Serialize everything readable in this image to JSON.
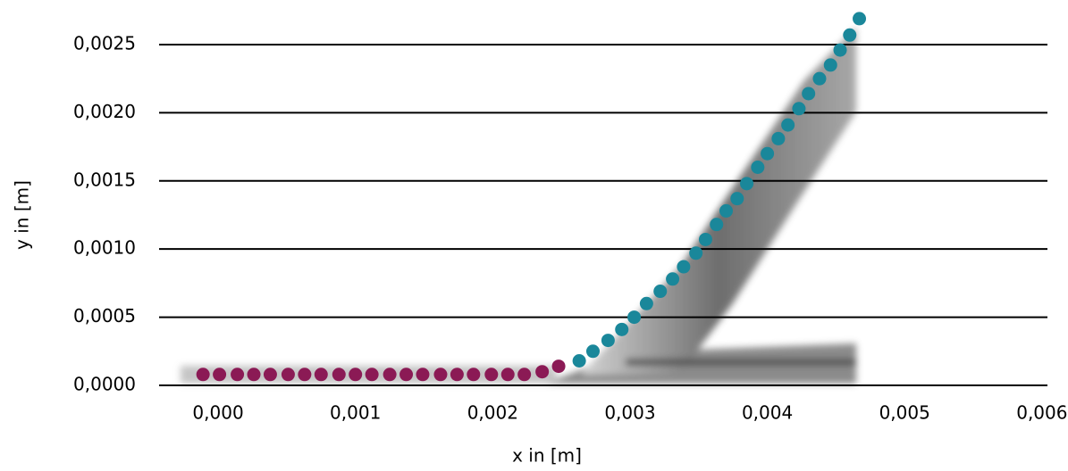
{
  "chart_data": {
    "type": "scatter",
    "x_label": "x in [m]",
    "y_label": "y in [m]",
    "xlim": [
      -0.00043,
      0.00604
    ],
    "ylim": [
      0,
      0.0027
    ],
    "xticks": [
      {
        "value": 0,
        "label": "0,000"
      },
      {
        "value": 0.001,
        "label": "0,001"
      },
      {
        "value": 0.002,
        "label": "0,002"
      },
      {
        "value": 0.003,
        "label": "0,003"
      },
      {
        "value": 0.004,
        "label": "0,004"
      },
      {
        "value": 0.005,
        "label": "0,005"
      },
      {
        "value": 0.006,
        "label": "0,006"
      }
    ],
    "yticks": [
      {
        "value": 0,
        "label": "0,0000"
      },
      {
        "value": 0.0005,
        "label": "0,0005"
      },
      {
        "value": 0.001,
        "label": "0,0010"
      },
      {
        "value": 0.0015,
        "label": "0,0015"
      },
      {
        "value": 0.002,
        "label": "0,0020"
      },
      {
        "value": 0.0025,
        "label": "0,0025"
      }
    ],
    "grid": true,
    "series": [
      {
        "color": "#8b1a55",
        "x": [
          -0.00011,
          1e-05,
          0.00014,
          0.00026,
          0.00038,
          0.00051,
          0.00063,
          0.00075,
          0.00088,
          0.001,
          0.00112,
          0.00125,
          0.00137,
          0.00149,
          0.00162,
          0.00174,
          0.00186,
          0.00199,
          0.00211,
          0.00223,
          0.00236,
          0.00248
        ],
        "values": [
          8e-05,
          8e-05,
          8e-05,
          8e-05,
          8e-05,
          8e-05,
          8e-05,
          8e-05,
          8e-05,
          8e-05,
          8e-05,
          8e-05,
          8e-05,
          8e-05,
          8e-05,
          8e-05,
          8e-05,
          8e-05,
          8e-05,
          8e-05,
          0.0001,
          0.00014
        ]
      },
      {
        "color": "#1a879a",
        "x": [
          0.00263,
          0.00273,
          0.00284,
          0.00294,
          0.00303,
          0.00312,
          0.00322,
          0.00331,
          0.00339,
          0.00348,
          0.00355,
          0.00363,
          0.0037,
          0.00378,
          0.00385,
          0.00393,
          0.004,
          0.00408,
          0.00415,
          0.00423,
          0.0043,
          0.00438,
          0.00446,
          0.00453,
          0.0046,
          0.00467
        ],
        "values": [
          0.00018,
          0.00025,
          0.00033,
          0.00041,
          0.0005,
          0.0006,
          0.00069,
          0.00078,
          0.00087,
          0.00097,
          0.00107,
          0.00118,
          0.00128,
          0.00137,
          0.00148,
          0.0016,
          0.0017,
          0.00181,
          0.00191,
          0.00203,
          0.00214,
          0.00225,
          0.00235,
          0.00246,
          0.00257,
          0.00269
        ]
      }
    ]
  }
}
